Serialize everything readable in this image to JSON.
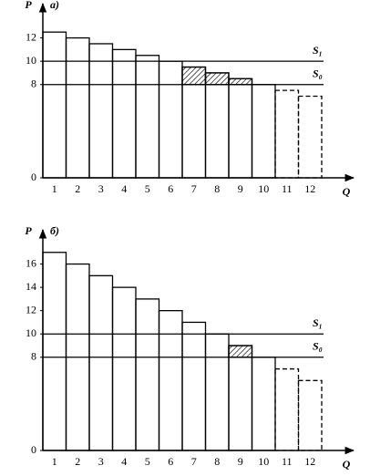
{
  "chart_data": [
    {
      "type": "bar",
      "title": "а)",
      "x_label": "Q",
      "y_label": "P",
      "categories": [
        "1",
        "2",
        "3",
        "4",
        "5",
        "6",
        "7",
        "8",
        "9",
        "10",
        "11",
        "12"
      ],
      "values": [
        12.5,
        12,
        11.5,
        11,
        10.5,
        10,
        9.5,
        9,
        8.5,
        8,
        7.5,
        7
      ],
      "ylim": [
        0,
        14
      ],
      "yticks": [
        0,
        8,
        10,
        12
      ],
      "supply_lines": [
        {
          "name": "S₁",
          "value": 10
        },
        {
          "name": "S₀",
          "value": 8
        }
      ],
      "color": "#000000"
    },
    {
      "type": "bar",
      "title": "б)",
      "x_label": "Q",
      "y_label": "P",
      "categories": [
        "1",
        "2",
        "3",
        "4",
        "5",
        "6",
        "7",
        "8",
        "9",
        "10",
        "11",
        "12"
      ],
      "values": [
        17,
        16,
        15,
        14,
        13,
        12,
        11,
        10,
        9,
        8,
        7,
        6
      ],
      "ylim": [
        0,
        18
      ],
      "yticks": [
        0,
        8,
        10,
        12,
        14,
        16
      ],
      "supply_lines": [
        {
          "name": "S₁",
          "value": 10
        },
        {
          "name": "S₀",
          "value": 8
        }
      ],
      "color": "#000000"
    }
  ]
}
